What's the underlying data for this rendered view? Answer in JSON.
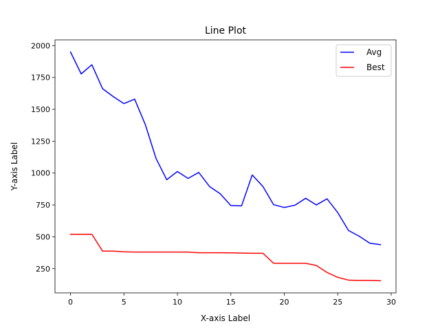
{
  "chart_data": {
    "type": "line",
    "title": "Line Plot",
    "xlabel": "X-axis Label",
    "ylabel": "Y-axis Label",
    "xlim": [
      -1.45,
      30.45
    ],
    "ylim": [
      60,
      2045
    ],
    "xticks": [
      0,
      5,
      10,
      15,
      20,
      25,
      30
    ],
    "yticks": [
      250,
      500,
      750,
      1000,
      1250,
      1500,
      1750,
      2000
    ],
    "grid": false,
    "legend_position": "top-right",
    "x": [
      0,
      1,
      2,
      3,
      4,
      5,
      6,
      7,
      8,
      9,
      10,
      11,
      12,
      13,
      14,
      15,
      16,
      17,
      18,
      19,
      20,
      21,
      22,
      23,
      24,
      25,
      26,
      27,
      28,
      29
    ],
    "series": [
      {
        "name": "Avg",
        "color": "#0000ff",
        "values": [
          1950,
          1778,
          1850,
          1662,
          1600,
          1545,
          1580,
          1380,
          1115,
          948,
          1012,
          958,
          1005,
          895,
          838,
          745,
          742,
          985,
          895,
          752,
          730,
          748,
          802,
          750,
          798,
          690,
          550,
          505,
          450,
          438
        ]
      },
      {
        "name": "Best",
        "color": "#ff0000",
        "values": [
          520,
          520,
          520,
          388,
          388,
          382,
          380,
          380,
          380,
          380,
          380,
          380,
          375,
          375,
          375,
          374,
          372,
          371,
          371,
          292,
          292,
          292,
          292,
          275,
          220,
          182,
          160,
          158,
          158,
          155
        ]
      }
    ]
  }
}
